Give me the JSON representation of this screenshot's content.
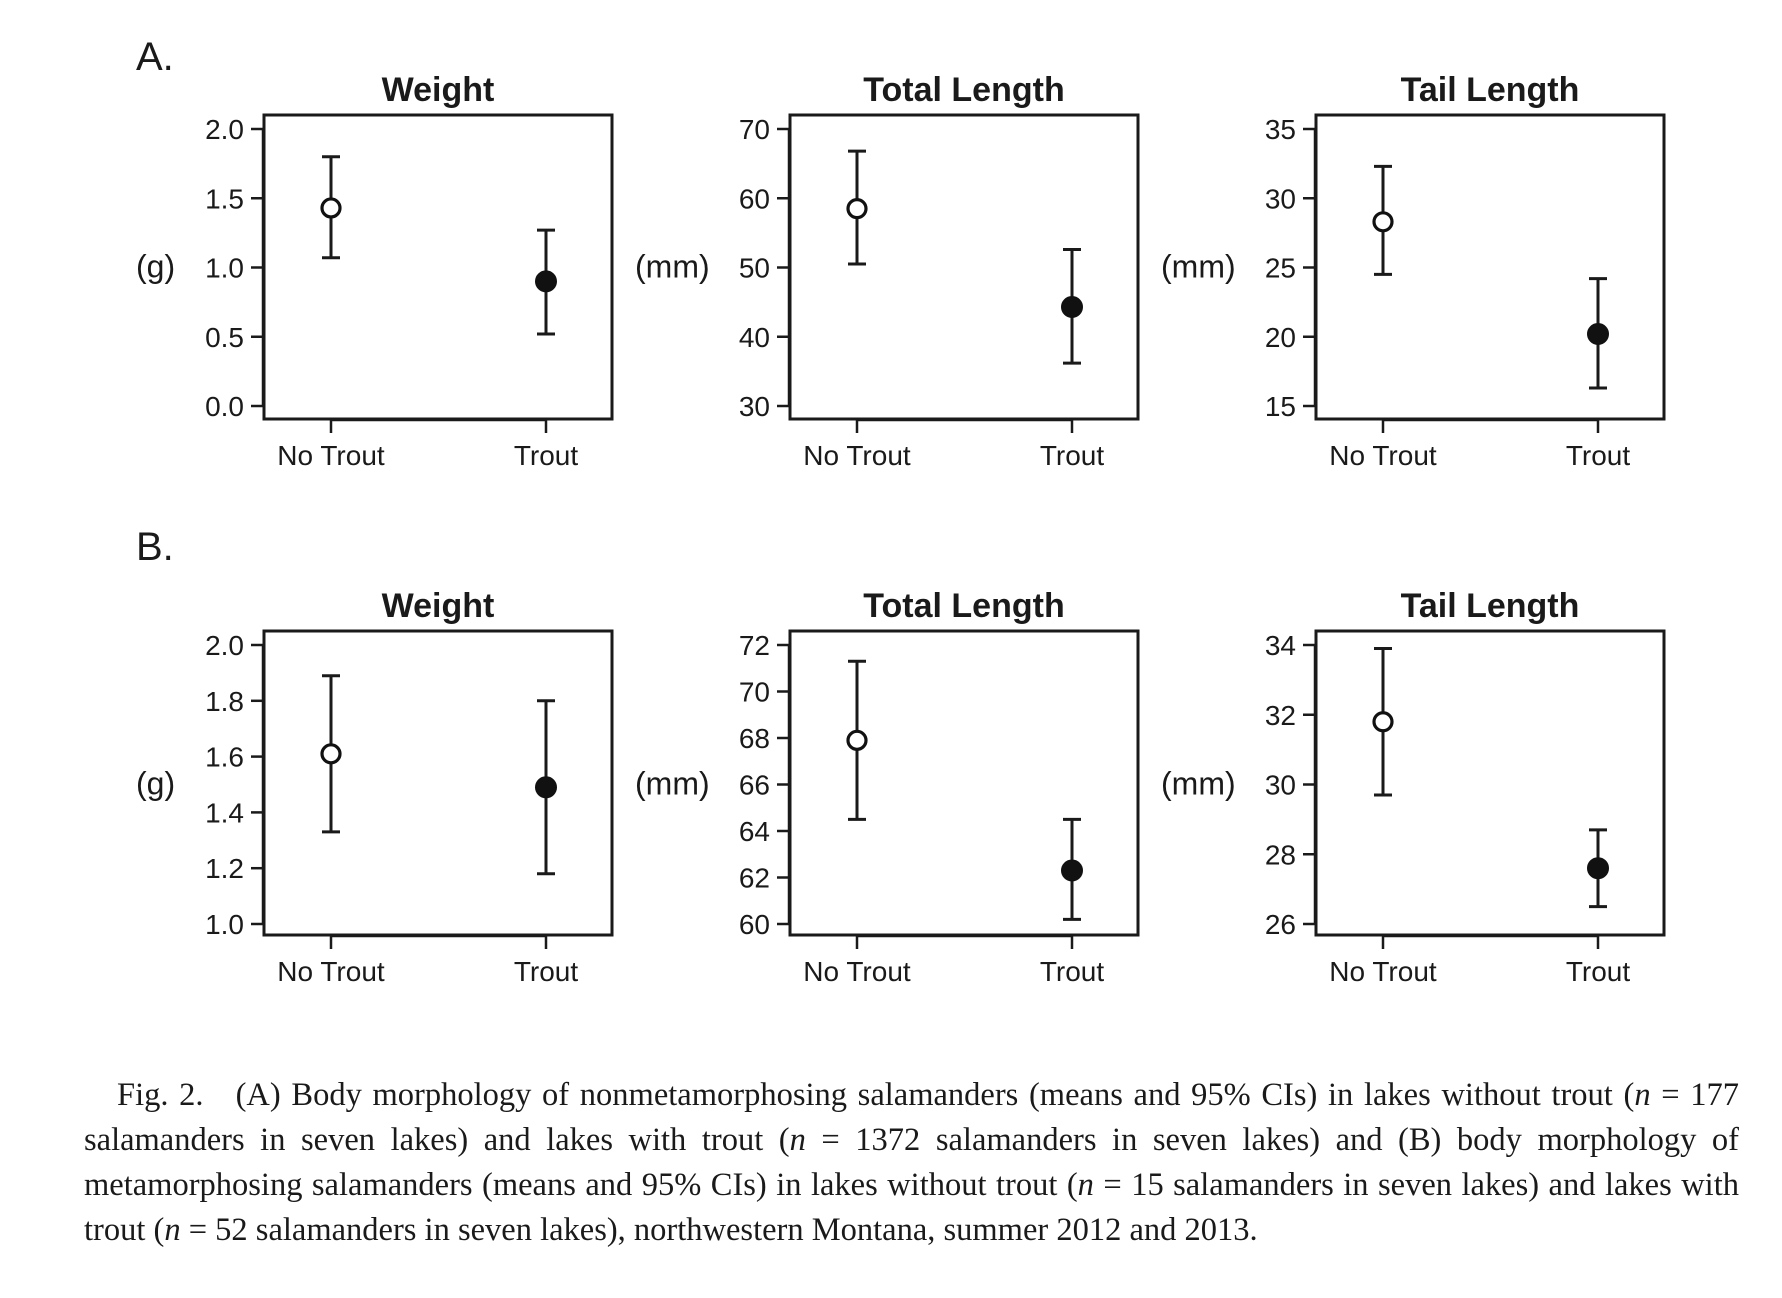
{
  "panels": [
    {
      "label": "A.",
      "charts": [
        {
          "type": "errorbar",
          "title": "Weight",
          "ylabel": "(g)",
          "categories": [
            "No Trout",
            "Trout"
          ],
          "ylim": [
            0.0,
            2.0
          ],
          "yticks": [
            0.0,
            0.5,
            1.0,
            1.5,
            2.0
          ],
          "ytick_labels": [
            "0.0",
            "0.5",
            "1.0",
            "1.5",
            "2.0"
          ],
          "means": [
            1.43,
            0.9
          ],
          "lower": [
            1.07,
            0.52
          ],
          "upper": [
            1.8,
            1.27
          ],
          "marker_fill": [
            "open",
            "filled"
          ]
        },
        {
          "type": "errorbar",
          "title": "Total Length",
          "ylabel": "(mm)",
          "categories": [
            "No Trout",
            "Trout"
          ],
          "ylim": [
            30,
            70
          ],
          "yticks": [
            30,
            40,
            50,
            60,
            70
          ],
          "ytick_labels": [
            "30",
            "40",
            "50",
            "60",
            "70"
          ],
          "means": [
            58.5,
            44.3
          ],
          "lower": [
            50.5,
            36.2
          ],
          "upper": [
            66.8,
            52.6
          ],
          "marker_fill": [
            "open",
            "filled"
          ]
        },
        {
          "type": "errorbar",
          "title": "Tail Length",
          "ylabel": "(mm)",
          "categories": [
            "No Trout",
            "Trout"
          ],
          "ylim": [
            15,
            35
          ],
          "yticks": [
            15,
            20,
            25,
            30,
            35
          ],
          "ytick_labels": [
            "15",
            "20",
            "25",
            "30",
            "35"
          ],
          "means": [
            28.3,
            20.2
          ],
          "lower": [
            24.5,
            16.3
          ],
          "upper": [
            32.3,
            24.2
          ],
          "marker_fill": [
            "open",
            "filled"
          ]
        }
      ]
    },
    {
      "label": "B.",
      "charts": [
        {
          "type": "errorbar",
          "title": "Weight",
          "ylabel": "(g)",
          "categories": [
            "No Trout",
            "Trout"
          ],
          "ylim": [
            1.0,
            2.0
          ],
          "yticks": [
            1.0,
            1.2,
            1.4,
            1.6,
            1.8,
            2.0
          ],
          "ytick_labels": [
            "1.0",
            "1.2",
            "1.4",
            "1.6",
            "1.8",
            "2.0"
          ],
          "means": [
            1.61,
            1.49
          ],
          "lower": [
            1.33,
            1.18
          ],
          "upper": [
            1.89,
            1.8
          ],
          "marker_fill": [
            "open",
            "filled"
          ]
        },
        {
          "type": "errorbar",
          "title": "Total Length",
          "ylabel": "(mm)",
          "categories": [
            "No Trout",
            "Trout"
          ],
          "ylim": [
            60,
            72
          ],
          "yticks": [
            60,
            62,
            64,
            66,
            68,
            70,
            72
          ],
          "ytick_labels": [
            "60",
            "62",
            "64",
            "66",
            "68",
            "70",
            "72"
          ],
          "means": [
            67.9,
            62.3
          ],
          "lower": [
            64.5,
            60.2
          ],
          "upper": [
            71.3,
            64.5
          ],
          "marker_fill": [
            "open",
            "filled"
          ]
        },
        {
          "type": "errorbar",
          "title": "Tail Length",
          "ylabel": "(mm)",
          "categories": [
            "No Trout",
            "Trout"
          ],
          "ylim": [
            26,
            34
          ],
          "yticks": [
            26,
            28,
            30,
            32,
            34
          ],
          "ytick_labels": [
            "26",
            "28",
            "30",
            "32",
            "34"
          ],
          "means": [
            31.8,
            27.6
          ],
          "lower": [
            29.7,
            26.5
          ],
          "upper": [
            33.9,
            28.7
          ],
          "marker_fill": [
            "open",
            "filled"
          ]
        }
      ]
    }
  ],
  "caption": {
    "figure_label": "Fig. 2.",
    "n_symbol": "n",
    "parts": [
      "(A) Body morphology of nonmetamorphosing salamanders (means and 95% CIs) in lakes without trout (",
      " = 177 salamanders in seven lakes) and lakes with trout (",
      " = 1372 salamanders in seven lakes) and (B) body morphology of metamorphosing salamanders (means and 95% CIs) in lakes without trout (",
      " = 15 salamanders in seven lakes) and lakes with trout (",
      " = 52 salamanders in seven lakes), northwestern Montana, summer 2012 and 2013."
    ]
  }
}
